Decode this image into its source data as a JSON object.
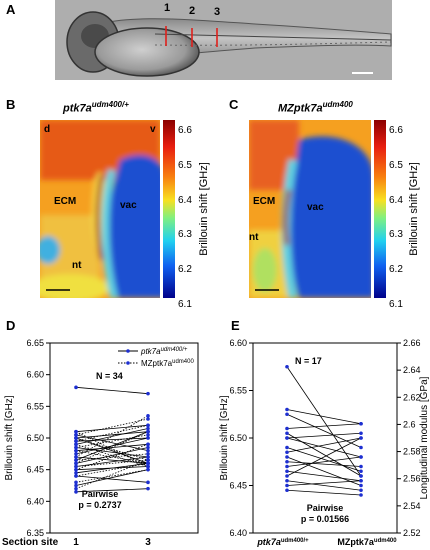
{
  "panels": {
    "A": {
      "label": "A",
      "section_marks": [
        "1",
        "2",
        "3"
      ]
    },
    "B": {
      "label": "B",
      "title_main": "ptk7a",
      "title_sup": "udm400/+",
      "annotations": {
        "d": "d",
        "v": "v",
        "ecm": "ECM",
        "vac": "vac",
        "nt": "nt"
      },
      "colorbar": {
        "ticks": [
          "6.6",
          "6.5",
          "6.4",
          "6.3",
          "6.2",
          "6.1"
        ],
        "label": "Brillouin shift [GHz]"
      }
    },
    "C": {
      "label": "C",
      "title_main": "MZptk7a",
      "title_sup": "udm400",
      "annotations": {
        "ecm": "ECM",
        "vac": "vac",
        "nt": "nt"
      },
      "colorbar": {
        "ticks": [
          "6.6",
          "6.5",
          "6.4",
          "6.3",
          "6.2",
          "6.1"
        ],
        "label": "Brillouin shift [GHz]"
      }
    },
    "D": {
      "label": "D",
      "n_label": "N = 34",
      "stats_line1": "Pairwise",
      "stats_line2": "p = 0.2737",
      "section_site_label": "Section site",
      "legend": [
        {
          "main": "ptk7a",
          "sup": "udm400/+",
          "style": "solid"
        },
        {
          "main": "MZptk7a",
          "sup": "udm400",
          "style": "dotted"
        }
      ]
    },
    "E": {
      "label": "E",
      "n_label": "N = 17",
      "stats_line1": "Pairwise",
      "stats_line2": "p = 0.01566"
    }
  },
  "chart_data": [
    {
      "type": "line",
      "panel": "D",
      "title": "",
      "xlabel": "Section site",
      "ylabel": "Brillouin shift [GHz]",
      "categories": [
        "1",
        "3"
      ],
      "ylim": [
        6.35,
        6.65
      ],
      "yticks": [
        "6.35",
        "6.40",
        "6.45",
        "6.50",
        "6.55",
        "6.60",
        "6.65"
      ],
      "series": [
        {
          "name": "ptk7a udm400/+",
          "style": "solid",
          "pairs": [
            [
              6.58,
              6.57
            ],
            [
              6.51,
              6.52
            ],
            [
              6.505,
              6.48
            ],
            [
              6.5,
              6.51
            ],
            [
              6.5,
              6.46
            ],
            [
              6.495,
              6.5
            ],
            [
              6.49,
              6.515
            ],
            [
              6.485,
              6.47
            ],
            [
              6.48,
              6.49
            ],
            [
              6.475,
              6.5
            ],
            [
              6.47,
              6.46
            ],
            [
              6.465,
              6.51
            ],
            [
              6.46,
              6.485
            ],
            [
              6.455,
              6.47
            ],
            [
              6.45,
              6.455
            ],
            [
              6.445,
              6.46
            ],
            [
              6.44,
              6.43
            ],
            [
              6.425,
              6.45
            ],
            [
              6.415,
              6.42
            ]
          ]
        },
        {
          "name": "MZptk7a udm400",
          "style": "dotted",
          "pairs": [
            [
              6.51,
              6.455
            ],
            [
              6.505,
              6.53
            ],
            [
              6.5,
              6.465
            ],
            [
              6.495,
              6.52
            ],
            [
              6.49,
              6.455
            ],
            [
              6.485,
              6.505
            ],
            [
              6.48,
              6.46
            ],
            [
              6.47,
              6.535
            ],
            [
              6.465,
              6.475
            ],
            [
              6.46,
              6.51
            ],
            [
              6.455,
              6.465
            ],
            [
              6.45,
              6.49
            ],
            [
              6.44,
              6.46
            ],
            [
              6.43,
              6.45
            ],
            [
              6.42,
              6.465
            ]
          ]
        }
      ]
    },
    {
      "type": "line",
      "panel": "E",
      "title": "",
      "xlabel": "",
      "categories": [
        {
          "main": "ptk7a",
          "sup": "udm400/+"
        },
        {
          "main": "MZptk7a",
          "sup": "udm400"
        }
      ],
      "ylabel": "Brillouin shift [GHz]",
      "ylim": [
        6.4,
        6.6
      ],
      "yticks": [
        "6.40",
        "6.45",
        "6.50",
        "6.55",
        "6.60"
      ],
      "y2label": "Longitudinal modulus [GPa]",
      "y2lim": [
        6.4,
        6.6
      ],
      "y2ticks": [
        "2.52",
        "2.54",
        "2.56",
        "2.58",
        "2.6",
        "2.62",
        "2.64",
        "2.66"
      ],
      "series": [
        {
          "name": "",
          "style": "solid",
          "pairs": [
            [
              6.575,
              6.46
            ],
            [
              6.53,
              6.515
            ],
            [
              6.525,
              6.49
            ],
            [
              6.51,
              6.515
            ],
            [
              6.505,
              6.46
            ],
            [
              6.5,
              6.48
            ],
            [
              6.5,
              6.505
            ],
            [
              6.49,
              6.465
            ],
            [
              6.485,
              6.5
            ],
            [
              6.48,
              6.45
            ],
            [
              6.475,
              6.47
            ],
            [
              6.47,
              6.48
            ],
            [
              6.465,
              6.455
            ],
            [
              6.46,
              6.5
            ],
            [
              6.455,
              6.445
            ],
            [
              6.45,
              6.455
            ],
            [
              6.445,
              6.44
            ]
          ]
        }
      ]
    }
  ]
}
